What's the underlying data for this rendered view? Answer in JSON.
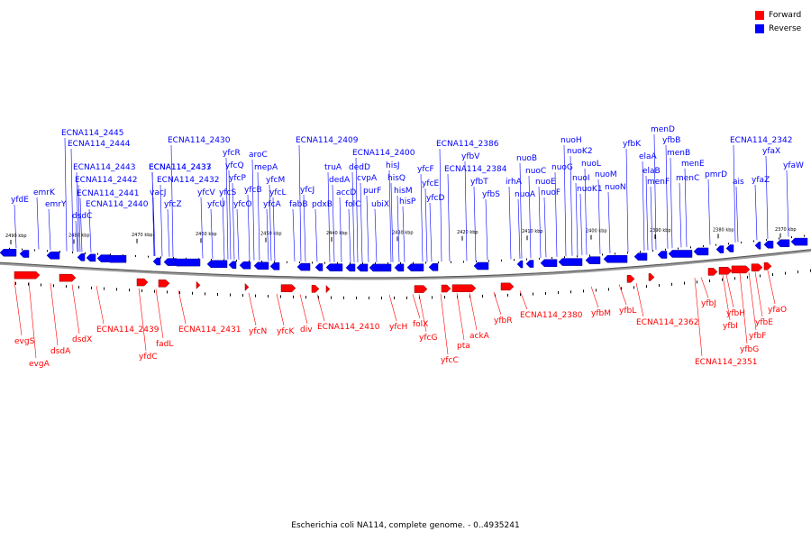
{
  "legend": {
    "forward": {
      "label": "Forward",
      "color": "#ff0000"
    },
    "reverse": {
      "label": "Reverse",
      "color": "#0000ff"
    }
  },
  "caption": "Escherichia coli NA114, complete genome. - 0..4935241",
  "ticks": [
    "2490 kbp",
    "2480 kbp",
    "2470 kbp",
    "2460 kbp",
    "2450 kbp",
    "2440 kbp",
    "2430 kbp",
    "2420 kbp",
    "2410 kbp",
    "2400 kbp",
    "2390 kbp",
    "2380 kbp",
    "2370 kbp"
  ],
  "reverse_genes": [
    "yfdE",
    "emrK",
    "emrY",
    "dsdC",
    "ECNA114_2445",
    "ECNA114_2444",
    "ECNA114_2443",
    "ECNA114_2442",
    "ECNA114_2441",
    "ECNA114_2440",
    "vacJ",
    "ECNA114_2437",
    "ECNA114_2433",
    "yfcZ",
    "ECNA114_2432",
    "ECNA114_2430",
    "yfcV",
    "yfcU",
    "yfcR",
    "yfcQ",
    "yfcP",
    "yfcS",
    "yfcO",
    "aroC",
    "yfcB",
    "mepA",
    "yfcM",
    "yfcL",
    "yfcA",
    "yfcJ",
    "fabB",
    "ECNA114_2409",
    "truA",
    "dedA",
    "pdxB",
    "accD",
    "dedD",
    "folC",
    "cvpA",
    "purF",
    "ubiX",
    "ECNA114_2400",
    "hisJ",
    "hisQ",
    "hisM",
    "hisP",
    "yfcF",
    "yfcE",
    "yfcD",
    "ECNA114_2386",
    "yfbV",
    "ECNA114_2384",
    "yfbT",
    "yfbS",
    "irhA",
    "nuoA",
    "nuoB",
    "nuoC",
    "nuoE",
    "nuoF",
    "nuoG",
    "nuoH",
    "nuoK2",
    "nuoI",
    "nuoL",
    "nuoK1",
    "nuoM",
    "nuoN",
    "yfbK",
    "elaA",
    "elaB",
    "menF",
    "menD",
    "yfbB",
    "menB",
    "menE",
    "menC",
    "pmrD",
    "ECNA114_2342",
    "ais",
    "yfaX",
    "yfaZ",
    "yfaW"
  ],
  "forward_genes": [
    "evgS",
    "evgA",
    "dsdA",
    "dsdX",
    "ECNA114_2439",
    "yfdC",
    "fadL",
    "ECNA114_2431",
    "yfcN",
    "yfcK",
    "div",
    "ECNA114_2410",
    "yfcH",
    "folX",
    "yfcG",
    "yfcC",
    "pta",
    "ackA",
    "yfbR",
    "ECNA114_2380",
    "yfbM",
    "yfbL",
    "ECNA114_2362",
    "yfbJ",
    "yfbI",
    "yfbH",
    "yfbG",
    "yfbF",
    "yfbE",
    "ECNA114_2351",
    "yfaO"
  ]
}
